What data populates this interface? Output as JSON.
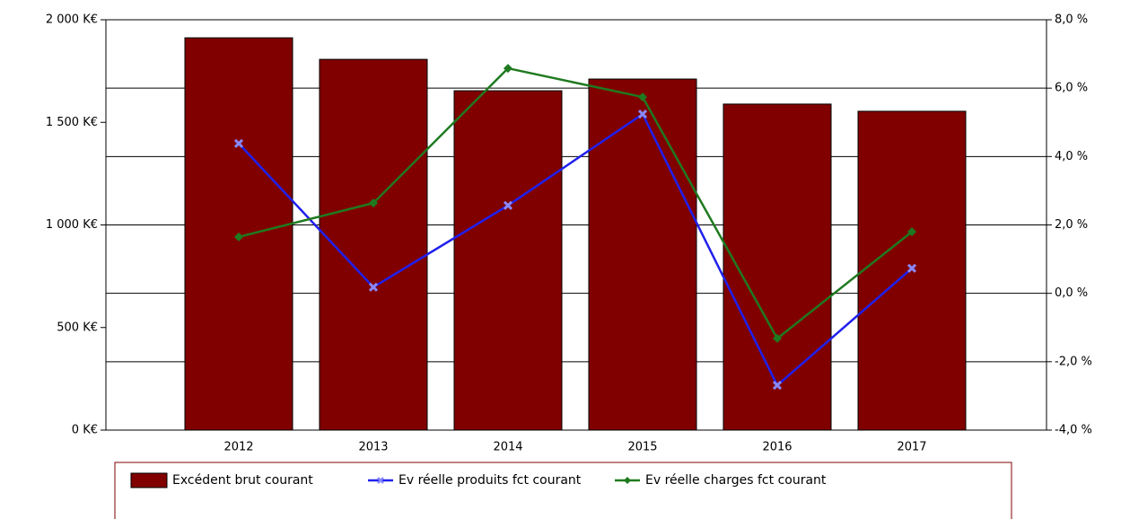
{
  "chart_data": {
    "type": "bar_line",
    "categories": [
      "2012",
      "2013",
      "2014",
      "2015",
      "2016",
      "2017"
    ],
    "series": [
      {
        "name": "Excédent brut courant",
        "color": "#800000",
        "type": "bar",
        "axis": "y",
        "values": [
          1912,
          1807,
          1654,
          1711,
          1589,
          1554
        ]
      },
      {
        "name": "Ev réelle produits fct courant",
        "color": "#2020ee",
        "type": "line",
        "axis": "y2",
        "marker": "x",
        "values": [
          4.38,
          0.18,
          2.57,
          5.24,
          -2.69,
          0.73
        ]
      },
      {
        "name": "Ev réelle charges fct courant",
        "color": "#1f7a1f",
        "type": "line",
        "axis": "y2",
        "marker": "diamond",
        "values": [
          1.65,
          2.64,
          6.58,
          5.74,
          -1.32,
          1.8
        ]
      }
    ],
    "ylim": [
      0,
      2000
    ],
    "yticks": [
      {
        "value": 0,
        "label": "0 K€"
      },
      {
        "value": 500,
        "label": "500 K€"
      },
      {
        "value": 1000,
        "label": "1 000 K€"
      },
      {
        "value": 1500,
        "label": "1 500 K€"
      },
      {
        "value": 2000,
        "label": "2 000 K€"
      }
    ],
    "y2lim": [
      -4,
      8
    ],
    "y2ticks": [
      {
        "value": -4,
        "label": "-4,0 %"
      },
      {
        "value": -2,
        "label": "-2,0 %"
      },
      {
        "value": 0,
        "label": "0,0 %"
      },
      {
        "value": 2,
        "label": "2,0 %"
      },
      {
        "value": 4,
        "label": "4,0 %"
      },
      {
        "value": 6,
        "label": "6,0 %"
      },
      {
        "value": 8,
        "label": "8,0 %"
      }
    ],
    "grid": true,
    "legend": "bottom"
  }
}
